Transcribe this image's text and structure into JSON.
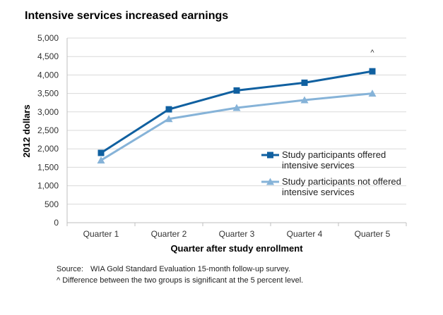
{
  "chart_data": {
    "type": "line",
    "title": "Intensive services increased earnings",
    "xlabel": "Quarter after study  enrollment",
    "ylabel": "2012 dollars",
    "categories": [
      "Quarter 1",
      "Quarter 2",
      "Quarter 3",
      "Quarter 4",
      "Quarter 5"
    ],
    "ylim": [
      0,
      5000
    ],
    "yticks": [
      0,
      500,
      1000,
      1500,
      2000,
      2500,
      3000,
      3500,
      4000,
      4500,
      5000
    ],
    "ytick_labels": [
      "0",
      "500",
      "1,000",
      "1,500",
      "2,000",
      "2,500",
      "3,000",
      "3,500",
      "4,000",
      "4,500",
      "5,000"
    ],
    "grid": true,
    "legend_position": "right",
    "series": [
      {
        "name": "Study participants offered intensive services",
        "name_lines": [
          "Study participants offered",
          "intensive services"
        ],
        "values": [
          1890,
          3070,
          3580,
          3790,
          4100
        ],
        "color": "#1060a0",
        "marker": "square"
      },
      {
        "name": "Study participants not offered intensive services",
        "name_lines": [
          "Study participants not offered",
          "intensive services"
        ],
        "values": [
          1690,
          2810,
          3110,
          3320,
          3500
        ],
        "color": "#86b3d8",
        "marker": "triangle"
      }
    ],
    "annotations": [
      {
        "text": "^",
        "category": "Quarter 5",
        "y": 4500
      }
    ]
  },
  "notes": {
    "source_label": "Source:",
    "source_text": "WIA Gold Standard Evaluation 15-month follow-up survey.",
    "significance": "^ Difference between the two groups is significant at the 5 percent level."
  }
}
